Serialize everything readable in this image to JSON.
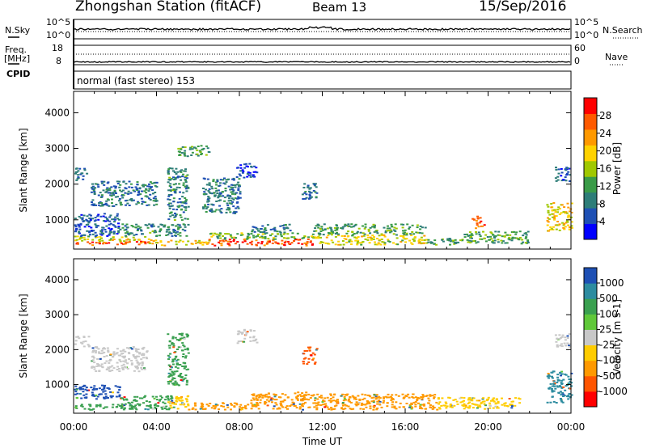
{
  "header": {
    "station": "Zhongshan Station (fitACF)",
    "beam": "Beam 13",
    "date": "15/Sep/2016"
  },
  "top_panels": {
    "nsky_label": "N.Sky",
    "nsky_tick_top": "10^5",
    "nsky_tick_bottom": "10^0",
    "nsearch_label": "N.Search",
    "nsearch_tick_top": "10^5",
    "nsearch_tick_bottom": "10^0",
    "freq_label": "Freq.",
    "freq_unit": "[MHz]",
    "freq_tick_top": "18",
    "freq_tick_bottom": "8",
    "nave_label": "Nave",
    "nave_tick_top": "60",
    "nave_tick_bottom": "0",
    "cpid_label": "CPID",
    "cpid_text": "normal (fast stereo) 153"
  },
  "colors": {
    "power_scale": [
      "#0000ff",
      "#1e50b4",
      "#2d7d78",
      "#3a9b48",
      "#a0c800",
      "#ffd200",
      "#ff9900",
      "#ff5a00",
      "#ff0000"
    ],
    "velocity_scale": [
      "#1e50b4",
      "#2d8ca0",
      "#3aa050",
      "#60c83a",
      "#c8c8c8",
      "#ffcc00",
      "#ff9900",
      "#ff5500",
      "#ff0000"
    ]
  },
  "chart_data": [
    {
      "type": "heatmap",
      "name": "power",
      "ylabel": "Slant Range [km]",
      "ylim": [
        180,
        4600
      ],
      "yticks": [
        "1000",
        "2000",
        "3000",
        "4000"
      ],
      "xticks": [
        "00:00",
        "04:00",
        "08:00",
        "12:00",
        "16:00",
        "20:00",
        "00:00"
      ],
      "xlim_hours": [
        0,
        24
      ],
      "colorbar_label": "Power [dB]",
      "colorbar_ticks": [
        "4",
        "8",
        "12",
        "16",
        "20",
        "24",
        "28"
      ],
      "colorbar_range": [
        0,
        32
      ],
      "regions": [
        {
          "t0": 0.0,
          "t1": 3.6,
          "r0": 300,
          "r1": 420,
          "v": 26
        },
        {
          "t0": 0.0,
          "t1": 3.6,
          "r0": 420,
          "r1": 560,
          "v": 18
        },
        {
          "t0": 0.0,
          "t1": 2.2,
          "r0": 560,
          "r1": 1200,
          "v": 6
        },
        {
          "t0": 2.2,
          "t1": 5.5,
          "r0": 560,
          "r1": 900,
          "v": 10
        },
        {
          "t0": 3.6,
          "t1": 6.5,
          "r0": 300,
          "r1": 450,
          "v": 20
        },
        {
          "t0": 6.5,
          "t1": 11.5,
          "r0": 300,
          "r1": 480,
          "v": 27
        },
        {
          "t0": 6.5,
          "t1": 11.5,
          "r0": 480,
          "r1": 650,
          "v": 14
        },
        {
          "t0": 8.5,
          "t1": 10.5,
          "r0": 650,
          "r1": 900,
          "v": 8
        },
        {
          "t0": 11.5,
          "t1": 17.0,
          "r0": 320,
          "r1": 600,
          "v": 18
        },
        {
          "t0": 11.5,
          "t1": 17.0,
          "r0": 600,
          "r1": 900,
          "v": 12
        },
        {
          "t0": 17.0,
          "t1": 18.8,
          "r0": 320,
          "r1": 500,
          "v": 12
        },
        {
          "t0": 18.8,
          "t1": 22.0,
          "r0": 350,
          "r1": 700,
          "v": 12
        },
        {
          "t0": 19.2,
          "t1": 19.8,
          "r0": 780,
          "r1": 1150,
          "v": 26
        },
        {
          "t0": 22.8,
          "t1": 24.0,
          "r0": 700,
          "r1": 1500,
          "v": 20
        },
        {
          "t0": 0.0,
          "t1": 0.6,
          "r0": 2100,
          "r1": 2500,
          "v": 6
        },
        {
          "t0": 0.8,
          "t1": 4.0,
          "r0": 1400,
          "r1": 2100,
          "v": 8
        },
        {
          "t0": 4.5,
          "t1": 5.5,
          "r0": 1000,
          "r1": 2500,
          "v": 10
        },
        {
          "t0": 6.2,
          "t1": 8.0,
          "r0": 1200,
          "r1": 2200,
          "v": 8
        },
        {
          "t0": 7.8,
          "t1": 8.8,
          "r0": 2200,
          "r1": 2600,
          "v": 4
        },
        {
          "t0": 5.0,
          "t1": 6.5,
          "r0": 2800,
          "r1": 3100,
          "v": 12
        },
        {
          "t0": 11.0,
          "t1": 11.7,
          "r0": 1600,
          "r1": 2100,
          "v": 8
        },
        {
          "t0": 23.2,
          "t1": 23.9,
          "r0": 2100,
          "r1": 2500,
          "v": 6
        }
      ]
    },
    {
      "type": "heatmap",
      "name": "velocity",
      "ylabel": "Slant Range [km]",
      "ylim": [
        180,
        4600
      ],
      "yticks": [
        "1000",
        "2000",
        "3000",
        "4000"
      ],
      "xticks": [
        "00:00",
        "04:00",
        "08:00",
        "12:00",
        "16:00",
        "20:00",
        "00:00"
      ],
      "xlabel": "Time UT",
      "colorbar_label": "Velocity [m s-1]",
      "colorbar_ticks": [
        "1000",
        "500",
        "100",
        "25",
        "-25",
        "-100",
        "-500",
        "-1000"
      ],
      "regions": [
        {
          "t0": 0.0,
          "t1": 3.0,
          "r0": 300,
          "r1": 450,
          "v": "#3aa050"
        },
        {
          "t0": 0.0,
          "t1": 2.2,
          "r0": 600,
          "r1": 1000,
          "v": "#1e50b4"
        },
        {
          "t0": 2.2,
          "t1": 4.8,
          "r0": 300,
          "r1": 700,
          "v": "#3aa050"
        },
        {
          "t0": 4.5,
          "t1": 5.5,
          "r0": 300,
          "r1": 700,
          "v": "#ffcc00"
        },
        {
          "t0": 5.5,
          "t1": 11.0,
          "r0": 300,
          "r1": 500,
          "v": "#ff9900"
        },
        {
          "t0": 8.5,
          "t1": 11.5,
          "r0": 500,
          "r1": 800,
          "v": "#ff9900"
        },
        {
          "t0": 11.0,
          "t1": 17.5,
          "r0": 300,
          "r1": 750,
          "v": "#ff9900"
        },
        {
          "t0": 17.5,
          "t1": 21.5,
          "r0": 320,
          "r1": 650,
          "v": "#ffcc00"
        },
        {
          "t0": 22.8,
          "t1": 24.0,
          "r0": 500,
          "r1": 1400,
          "v": "#2d8ca0"
        },
        {
          "t0": 0.0,
          "t1": 0.7,
          "r0": 2100,
          "r1": 2400,
          "v": "#c8c8c8"
        },
        {
          "t0": 0.8,
          "t1": 3.5,
          "r0": 1400,
          "r1": 2100,
          "v": "#c8c8c8"
        },
        {
          "t0": 4.5,
          "t1": 5.5,
          "r0": 1000,
          "r1": 2500,
          "v": "#3aa050"
        },
        {
          "t0": 11.0,
          "t1": 11.7,
          "r0": 1600,
          "r1": 2100,
          "v": "#ff5500"
        },
        {
          "t0": 7.8,
          "t1": 8.8,
          "r0": 2200,
          "r1": 2600,
          "v": "#c8c8c8"
        },
        {
          "t0": 23.2,
          "t1": 23.9,
          "r0": 2100,
          "r1": 2500,
          "v": "#c8c8c8"
        }
      ]
    }
  ]
}
